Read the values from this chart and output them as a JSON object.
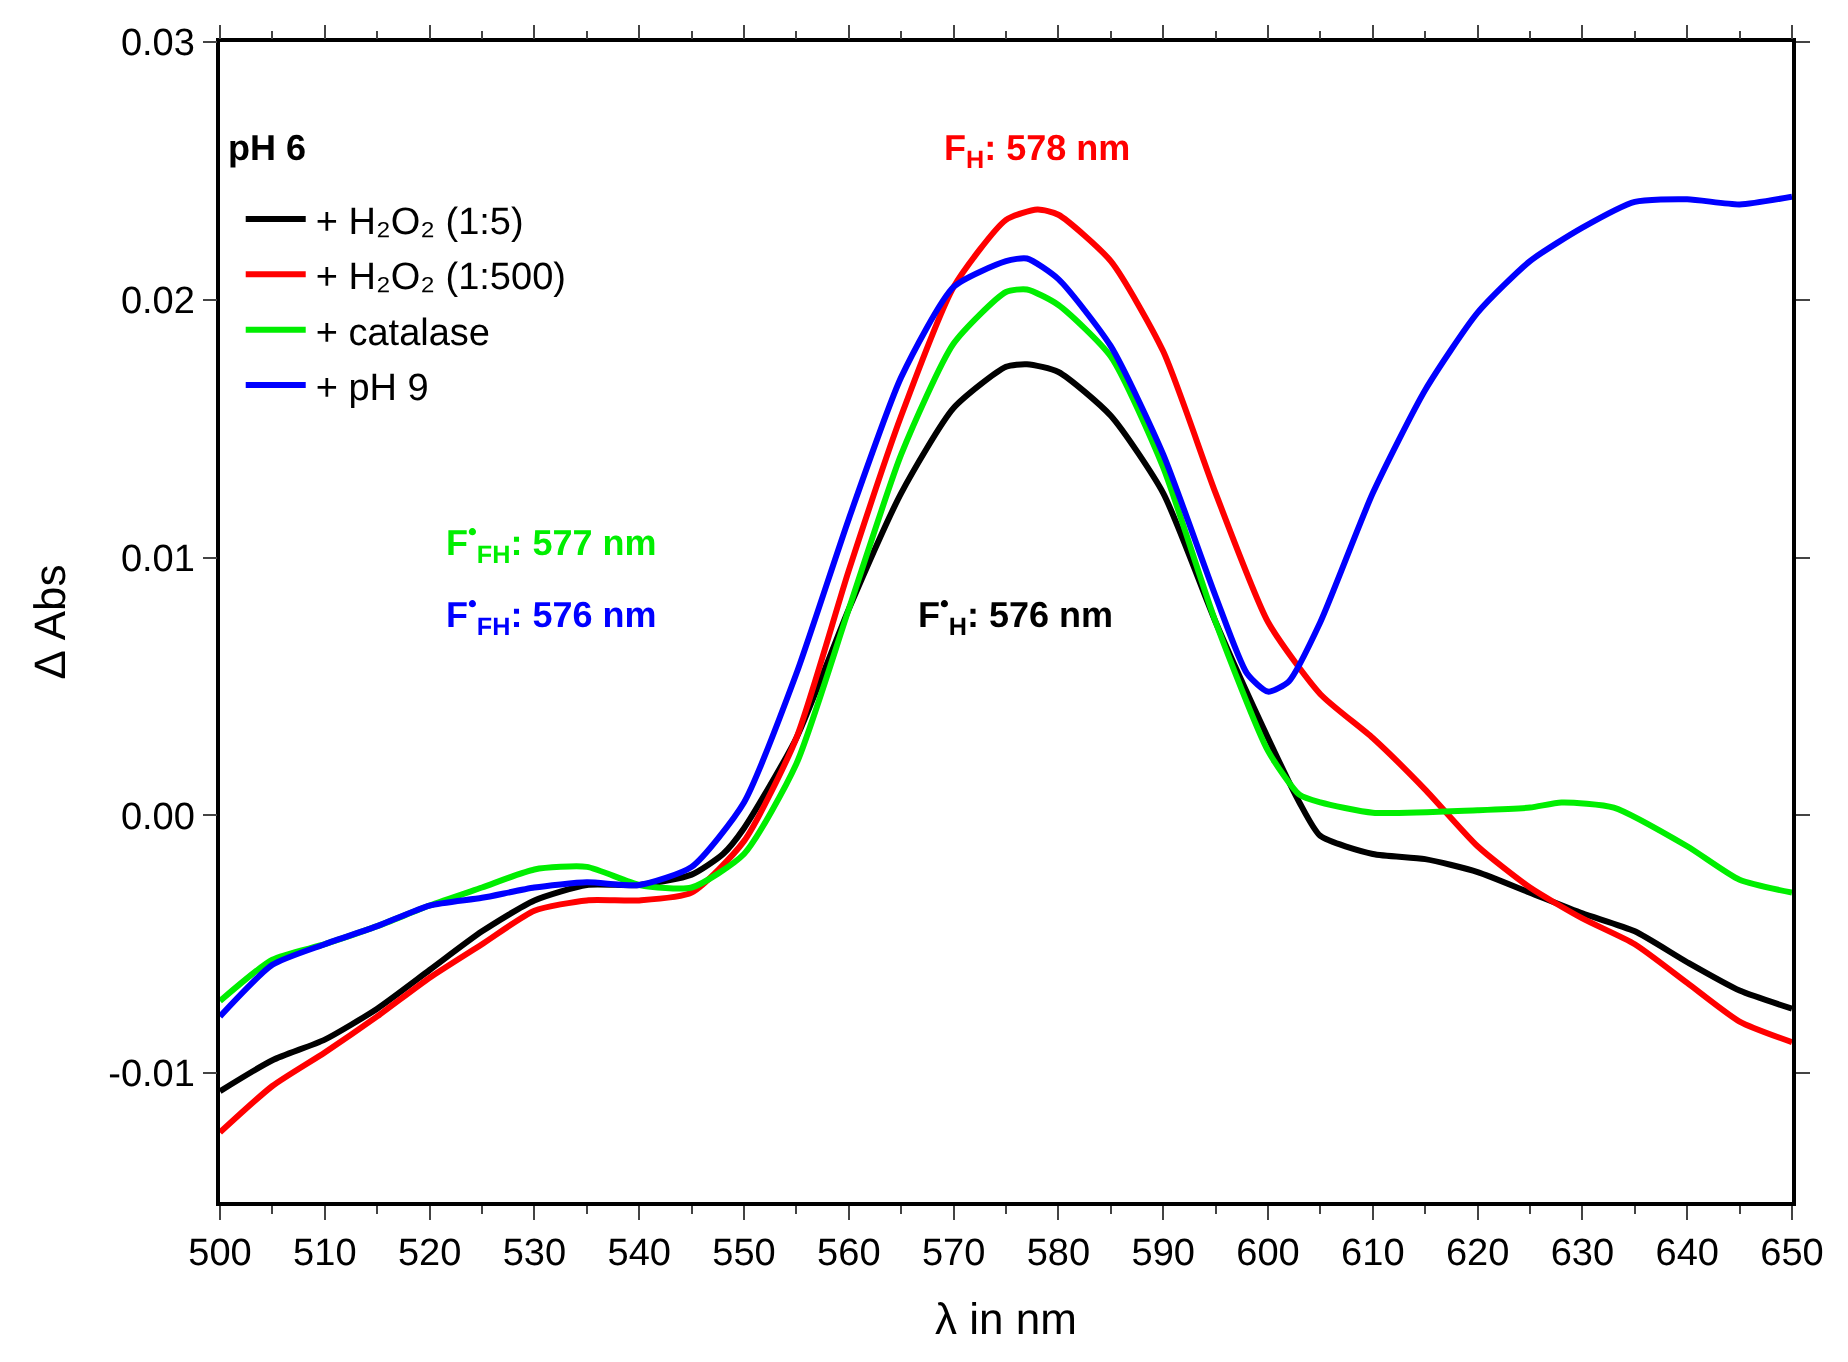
{
  "chart_data": {
    "type": "line",
    "xlabel": "λ in nm",
    "ylabel": "Δ Abs",
    "xlim": [
      500,
      650
    ],
    "xticks": [
      500,
      510,
      520,
      530,
      540,
      550,
      560,
      570,
      580,
      590,
      600,
      610,
      620,
      630,
      640,
      650
    ],
    "ylim": [
      -0.015,
      0.03
    ],
    "yticks": [
      {
        "value": -0.01,
        "label": "-0.01"
      },
      {
        "value": 0,
        "label": "0.00"
      },
      {
        "value": 0.01,
        "label": "0.01"
      },
      {
        "value": 0.02,
        "label": "0.02"
      },
      {
        "value": 0.03,
        "label": "0.03"
      }
    ],
    "legend": "top left",
    "marker": "none",
    "line_style": "solid",
    "annotations": [
      "pH 6",
      "F$_{H}$: 578 nm",
      "F$^{•}$$_{FH}$: 577 nm",
      "F$^{•}$$_{FH}$: 576 nm",
      "F$^{•}$$_{H}$: 576 nm"
    ],
    "series": [
      {
        "name": "+ H₂O₂ (1:5)",
        "color": "#000000",
        "x": [
          500,
          505,
          510,
          515,
          520,
          525,
          530,
          535,
          540,
          545,
          548,
          550,
          555,
          560,
          565,
          570,
          575,
          577,
          580,
          585,
          590,
          595,
          600,
          603,
          605,
          610,
          615,
          620,
          625,
          630,
          635,
          640,
          645,
          650
        ],
        "values": [
          -0.0107,
          -0.0095,
          -0.0087,
          -0.0075,
          -0.006,
          -0.0045,
          -0.0033,
          -0.0027,
          -0.0027,
          -0.0023,
          -0.0015,
          -0.0005,
          0.003,
          0.008,
          0.0125,
          0.0158,
          0.0174,
          0.0175,
          0.0172,
          0.0155,
          0.0125,
          0.0075,
          0.003,
          0.0005,
          -0.0008,
          -0.0015,
          -0.0017,
          -0.0022,
          -0.003,
          -0.0038,
          -0.0045,
          -0.0057,
          -0.0068,
          -0.0075
        ]
      },
      {
        "name": "+ H₂O₂ (1:500)",
        "color": "#ff0000",
        "x": [
          500,
          505,
          510,
          515,
          520,
          525,
          530,
          535,
          540,
          545,
          550,
          555,
          560,
          565,
          570,
          575,
          578,
          580,
          585,
          590,
          595,
          600,
          605,
          610,
          615,
          620,
          625,
          630,
          635,
          640,
          645,
          650
        ],
        "values": [
          -0.0123,
          -0.0105,
          -0.0092,
          -0.0078,
          -0.0063,
          -0.005,
          -0.0037,
          -0.0033,
          -0.0033,
          -0.003,
          -0.001,
          0.003,
          0.0095,
          0.0155,
          0.0205,
          0.0231,
          0.0235,
          0.0233,
          0.0215,
          0.018,
          0.0125,
          0.0075,
          0.0047,
          0.003,
          0.001,
          -0.0012,
          -0.0028,
          -0.004,
          -0.005,
          -0.0065,
          -0.008,
          -0.0088
        ]
      },
      {
        "name": "+ catalase",
        "color": "#00ee00",
        "x": [
          500,
          505,
          510,
          515,
          520,
          525,
          530,
          535,
          540,
          545,
          550,
          555,
          560,
          565,
          570,
          575,
          577,
          580,
          585,
          590,
          595,
          600,
          603,
          605,
          610,
          620,
          625,
          628,
          633,
          640,
          645,
          650
        ],
        "values": [
          -0.0072,
          -0.0056,
          -0.005,
          -0.0043,
          -0.0035,
          -0.0028,
          -0.0021,
          -0.002,
          -0.0027,
          -0.0028,
          -0.0015,
          0.002,
          0.008,
          0.014,
          0.0183,
          0.0203,
          0.0204,
          0.0198,
          0.0178,
          0.0135,
          0.0075,
          0.0025,
          0.0008,
          0.0005,
          0.0001,
          0.0002,
          0.0003,
          0.0005,
          0.0003,
          -0.0012,
          -0.0025,
          -0.003
        ]
      },
      {
        "name": "+ pH 9",
        "color": "#0000ff",
        "x": [
          500,
          505,
          510,
          515,
          520,
          525,
          530,
          535,
          540,
          545,
          550,
          555,
          560,
          565,
          570,
          575,
          577,
          580,
          585,
          590,
          595,
          598,
          600,
          602,
          605,
          610,
          615,
          620,
          625,
          630,
          635,
          640,
          645,
          650
        ],
        "values": [
          -0.0078,
          -0.0058,
          -0.005,
          -0.0043,
          -0.0035,
          -0.0032,
          -0.0028,
          -0.0026,
          -0.0027,
          -0.002,
          0.0005,
          0.0055,
          0.0115,
          0.017,
          0.0205,
          0.0215,
          0.0216,
          0.0208,
          0.0182,
          0.014,
          0.0085,
          0.0055,
          0.0048,
          0.0052,
          0.0075,
          0.0125,
          0.0165,
          0.0195,
          0.0215,
          0.0228,
          0.0238,
          0.0239,
          0.0237,
          0.024
        ]
      }
    ]
  }
}
